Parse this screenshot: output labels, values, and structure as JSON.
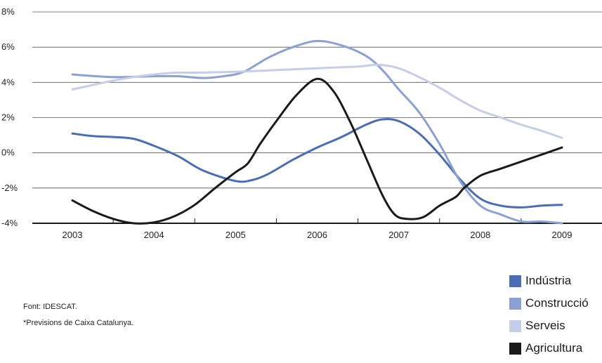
{
  "chart_data": {
    "type": "line",
    "x_ticks": [
      "2003",
      "2004",
      "2005",
      "2006",
      "2007",
      "2008",
      "2009"
    ],
    "y_ticks": [
      "8%",
      "6%",
      "4%",
      "2%",
      "0%",
      "-2%",
      "-4%"
    ],
    "xlim": [
      2003,
      2009
    ],
    "ylim": [
      -4,
      8
    ],
    "grid": "horizontal",
    "legend_position": "bottom-right",
    "series": [
      {
        "name": "Indústria",
        "color": "#4a6db5",
        "points": [
          [
            2003,
            1.1
          ],
          [
            2003.25,
            0.95
          ],
          [
            2003.5,
            0.9
          ],
          [
            2003.75,
            0.8
          ],
          [
            2004,
            0.4
          ],
          [
            2004.3,
            -0.2
          ],
          [
            2004.6,
            -1.0
          ],
          [
            2005,
            -1.6
          ],
          [
            2005.2,
            -1.55
          ],
          [
            2005.4,
            -1.2
          ],
          [
            2005.7,
            -0.4
          ],
          [
            2006,
            0.3
          ],
          [
            2006.3,
            0.9
          ],
          [
            2006.6,
            1.6
          ],
          [
            2006.8,
            1.9
          ],
          [
            2007,
            1.8
          ],
          [
            2007.25,
            1.1
          ],
          [
            2007.5,
            -0.1
          ],
          [
            2007.75,
            -1.5
          ],
          [
            2008,
            -2.6
          ],
          [
            2008.25,
            -3.0
          ],
          [
            2008.5,
            -3.1
          ],
          [
            2008.75,
            -3.0
          ],
          [
            2009,
            -2.95
          ]
        ]
      },
      {
        "name": "Construcció",
        "color": "#8ba0d3",
        "points": [
          [
            2003,
            4.45
          ],
          [
            2003.5,
            4.3
          ],
          [
            2004,
            4.35
          ],
          [
            2004.3,
            4.35
          ],
          [
            2004.6,
            4.25
          ],
          [
            2004.85,
            4.35
          ],
          [
            2005.1,
            4.6
          ],
          [
            2005.4,
            5.4
          ],
          [
            2005.7,
            6.0
          ],
          [
            2006,
            6.35
          ],
          [
            2006.3,
            6.1
          ],
          [
            2006.6,
            5.5
          ],
          [
            2006.8,
            4.7
          ],
          [
            2007,
            3.6
          ],
          [
            2007.25,
            2.3
          ],
          [
            2007.5,
            0.5
          ],
          [
            2007.75,
            -1.6
          ],
          [
            2008,
            -3.0
          ],
          [
            2008.25,
            -3.5
          ],
          [
            2008.5,
            -3.9
          ],
          [
            2008.75,
            -3.9
          ],
          [
            2009,
            -4.0
          ]
        ]
      },
      {
        "name": "Serveis",
        "color": "#c5cde8",
        "points": [
          [
            2003,
            3.6
          ],
          [
            2003.25,
            3.85
          ],
          [
            2003.5,
            4.1
          ],
          [
            2003.75,
            4.3
          ],
          [
            2004,
            4.45
          ],
          [
            2004.25,
            4.55
          ],
          [
            2004.5,
            4.55
          ],
          [
            2005,
            4.6
          ],
          [
            2005.5,
            4.7
          ],
          [
            2006,
            4.8
          ],
          [
            2006.5,
            4.9
          ],
          [
            2006.75,
            5.0
          ],
          [
            2007,
            4.8
          ],
          [
            2007.25,
            4.3
          ],
          [
            2007.5,
            3.7
          ],
          [
            2007.75,
            3.0
          ],
          [
            2008,
            2.4
          ],
          [
            2008.25,
            2.0
          ],
          [
            2008.5,
            1.6
          ],
          [
            2008.75,
            1.25
          ],
          [
            2009,
            0.85
          ]
        ]
      },
      {
        "name": "Agricultura",
        "color": "#1a1a1a",
        "points": [
          [
            2003,
            -2.7
          ],
          [
            2003.25,
            -3.3
          ],
          [
            2003.5,
            -3.75
          ],
          [
            2003.75,
            -4.0
          ],
          [
            2004,
            -3.95
          ],
          [
            2004.25,
            -3.6
          ],
          [
            2004.5,
            -2.95
          ],
          [
            2004.75,
            -2.0
          ],
          [
            2005,
            -1.1
          ],
          [
            2005.15,
            -0.6
          ],
          [
            2005.3,
            0.5
          ],
          [
            2005.5,
            1.8
          ],
          [
            2005.75,
            3.3
          ],
          [
            2006,
            4.2
          ],
          [
            2006.2,
            3.5
          ],
          [
            2006.4,
            1.8
          ],
          [
            2006.6,
            -0.3
          ],
          [
            2006.8,
            -2.4
          ],
          [
            2006.95,
            -3.5
          ],
          [
            2007.1,
            -3.75
          ],
          [
            2007.3,
            -3.65
          ],
          [
            2007.5,
            -3.0
          ],
          [
            2007.7,
            -2.5
          ],
          [
            2007.8,
            -2.0
          ],
          [
            2008,
            -1.3
          ],
          [
            2008.25,
            -0.9
          ],
          [
            2008.5,
            -0.5
          ],
          [
            2008.75,
            -0.1
          ],
          [
            2009,
            0.3
          ]
        ]
      }
    ]
  },
  "legend": [
    {
      "label": "Indústria",
      "color": "#4a6db5"
    },
    {
      "label": "Construcció",
      "color": "#8ba0d3"
    },
    {
      "label": "Serveis",
      "color": "#c5cde8"
    },
    {
      "label": "Agricultura",
      "color": "#1a1a1a"
    }
  ],
  "notes": {
    "source": "Font: IDESCAT.",
    "footnote": "*Previsions de Caixa Catalunya."
  }
}
